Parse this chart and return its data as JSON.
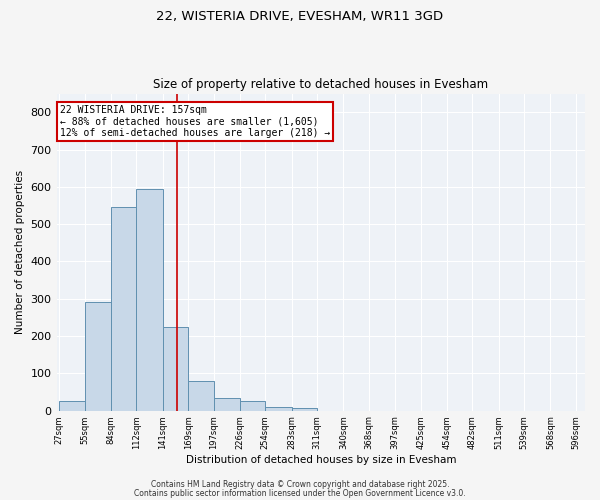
{
  "title1": "22, WISTERIA DRIVE, EVESHAM, WR11 3GD",
  "title2": "Size of property relative to detached houses in Evesham",
  "xlabel": "Distribution of detached houses by size in Evesham",
  "ylabel": "Number of detached properties",
  "bar_edges": [
    27,
    55,
    84,
    112,
    141,
    169,
    197,
    226,
    254,
    283,
    311,
    340,
    368,
    397,
    425,
    454,
    482,
    511,
    539,
    568,
    596
  ],
  "bar_heights": [
    25,
    290,
    545,
    595,
    225,
    80,
    35,
    25,
    10,
    8,
    0,
    0,
    0,
    0,
    0,
    0,
    0,
    0,
    0,
    0
  ],
  "bar_color": "#c8d8e8",
  "bar_edgecolor": "#6090b0",
  "property_size": 157,
  "vline_color": "#cc0000",
  "annotation_line1": "22 WISTERIA DRIVE: 157sqm",
  "annotation_line2": "← 88% of detached houses are smaller (1,605)",
  "annotation_line3": "12% of semi-detached houses are larger (218) →",
  "annotation_box_color": "#cc0000",
  "ylim": [
    0,
    850
  ],
  "yticks": [
    0,
    100,
    200,
    300,
    400,
    500,
    600,
    700,
    800
  ],
  "bg_color": "#eef2f7",
  "grid_color": "#ffffff",
  "footnote1": "Contains HM Land Registry data © Crown copyright and database right 2025.",
  "footnote2": "Contains public sector information licensed under the Open Government Licence v3.0."
}
